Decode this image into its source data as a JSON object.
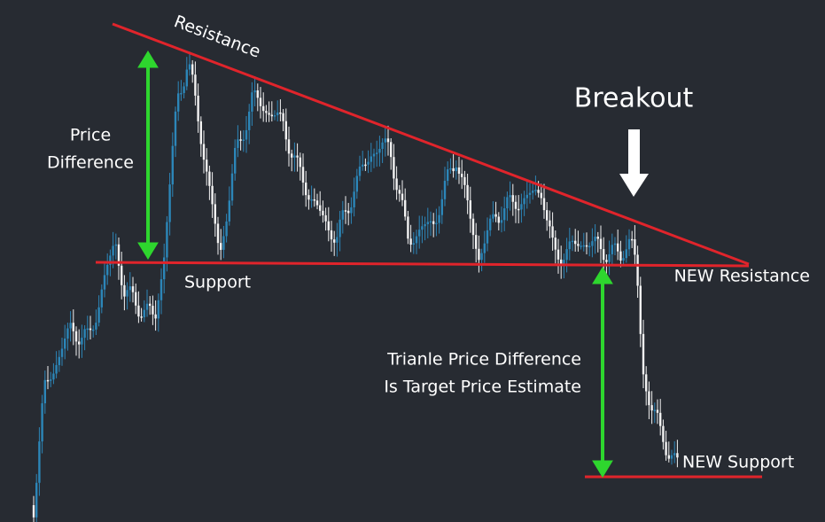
{
  "labels": {
    "resistance": "Resistance",
    "breakout": "Breakout",
    "price_difference": [
      "Price",
      "Difference"
    ],
    "support": "Support",
    "new_resistance": "NEW Resistance",
    "target_note": [
      "Trianle Price Difference",
      "Is Target Price Estimate"
    ],
    "new_support": "NEW Support"
  }
}
